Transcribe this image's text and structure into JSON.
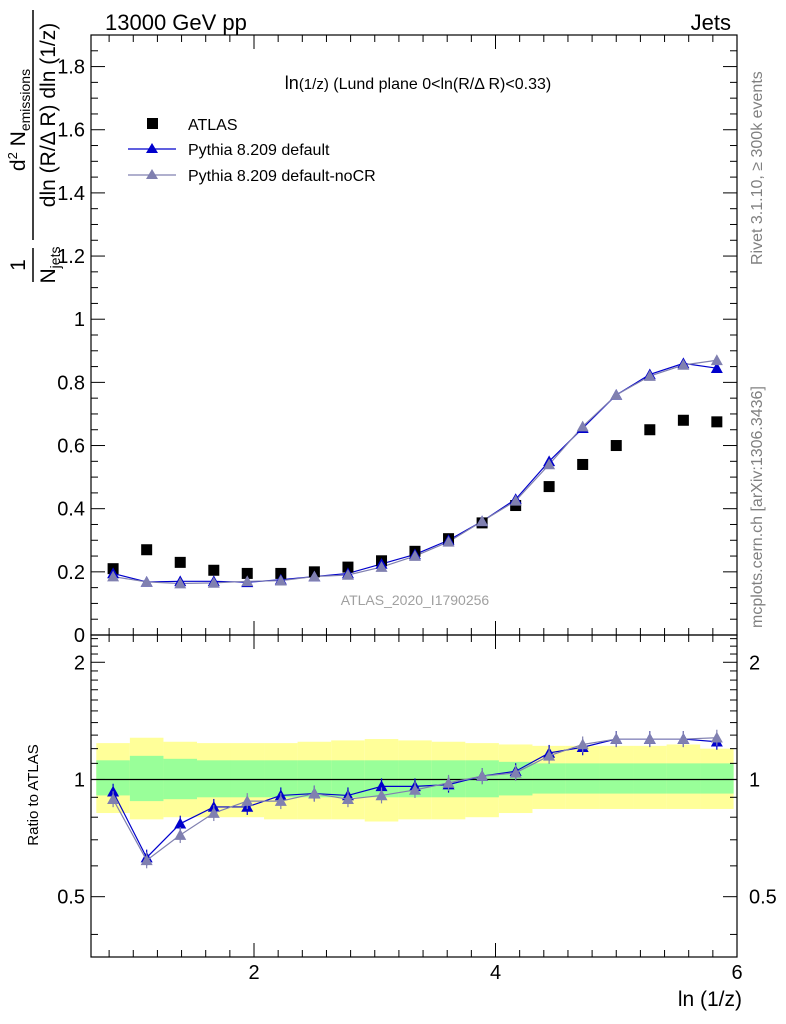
{
  "header": {
    "left": "13000 GeV pp",
    "right": "Jets"
  },
  "side_labels": {
    "rivet": "Rivet 3.1.10, ≥ 300k events",
    "mcplots": "mcplots.cern.ch [arXiv:1306.3436]"
  },
  "main_title": {
    "prefix": "ln",
    "sub": "(1/z)",
    "rest": " (Lund plane 0<ln(R/Δ R)<0.33)"
  },
  "ylabel_main": {
    "num_one": "1",
    "den_N": "N",
    "den_sub": "jets",
    "den_rest": "dln (R/Δ R) dln (1/z)",
    "num_d": "d",
    "num_exp": "2",
    "num_N": " N",
    "num_sub": "emissions"
  },
  "ylabel_ratio": "Ratio to ATLAS",
  "xlabel": "ln (1/z)",
  "watermark": "ATLAS_2020_I1790256",
  "legend": [
    {
      "label": "ATLAS",
      "marker": "square",
      "color": "#000000"
    },
    {
      "label": "Pythia 8.209 default",
      "marker": "triangle",
      "color": "#0000cc"
    },
    {
      "label": "Pythia 8.209 default-noCR",
      "marker": "triangle",
      "color": "#8080b0"
    }
  ],
  "chart_data": [
    {
      "type": "scatter",
      "panel": "main",
      "xlabel": "ln (1/z)",
      "xlim": [
        0.65,
        6.0
      ],
      "ylim": [
        0.0,
        1.9
      ],
      "x_ticks": [
        2,
        4,
        6
      ],
      "y_ticks": [
        0,
        0.2,
        0.4,
        0.6,
        0.8,
        1,
        1.2,
        1.4,
        1.6,
        1.8
      ],
      "x": [
        0.833,
        1.111,
        1.389,
        1.667,
        1.944,
        2.222,
        2.5,
        2.778,
        3.056,
        3.333,
        3.611,
        3.889,
        4.167,
        4.444,
        4.722,
        5.0,
        5.278,
        5.556,
        5.833
      ],
      "series": [
        {
          "name": "ATLAS",
          "color": "#000000",
          "marker": "square",
          "values": [
            0.21,
            0.27,
            0.23,
            0.205,
            0.195,
            0.195,
            0.2,
            0.215,
            0.235,
            0.265,
            0.305,
            0.355,
            0.41,
            0.47,
            0.54,
            0.6,
            0.65,
            0.68,
            0.675
          ]
        },
        {
          "name": "Pythia 8.209 default",
          "color": "#0000cc",
          "marker": "triangle",
          "values": [
            0.195,
            0.168,
            0.17,
            0.17,
            0.167,
            0.175,
            0.185,
            0.195,
            0.225,
            0.255,
            0.3,
            0.36,
            0.43,
            0.55,
            0.655,
            0.76,
            0.825,
            0.86,
            0.845
          ]
        },
        {
          "name": "Pythia 8.209 default-noCR",
          "color": "#8080b0",
          "marker": "triangle",
          "values": [
            0.185,
            0.168,
            0.163,
            0.165,
            0.17,
            0.172,
            0.185,
            0.19,
            0.215,
            0.25,
            0.295,
            0.36,
            0.425,
            0.54,
            0.66,
            0.76,
            0.82,
            0.855,
            0.87
          ]
        }
      ]
    },
    {
      "type": "line",
      "panel": "ratio",
      "ylabel": "Ratio to ATLAS",
      "xlabel": "ln (1/z)",
      "xlim": [
        0.65,
        6.0
      ],
      "ylim": [
        0.35,
        2.35
      ],
      "x_ticks": [
        2,
        4,
        6
      ],
      "y_ticks": [
        0.5,
        1,
        2
      ],
      "reference_line": 1.0,
      "x": [
        0.833,
        1.111,
        1.389,
        1.667,
        1.944,
        2.222,
        2.5,
        2.778,
        3.056,
        3.333,
        3.611,
        3.889,
        4.167,
        4.444,
        4.722,
        5.0,
        5.278,
        5.556,
        5.833
      ],
      "bands": {
        "inner": {
          "color": "#99ff99",
          "lo": [
            0.91,
            0.88,
            0.89,
            0.9,
            0.9,
            0.9,
            0.9,
            0.9,
            0.9,
            0.9,
            0.9,
            0.9,
            0.91,
            0.92,
            0.92,
            0.92,
            0.92,
            0.92,
            0.92
          ],
          "hi": [
            1.12,
            1.15,
            1.13,
            1.12,
            1.12,
            1.12,
            1.12,
            1.12,
            1.12,
            1.12,
            1.12,
            1.12,
            1.11,
            1.1,
            1.1,
            1.1,
            1.1,
            1.1,
            1.1
          ]
        },
        "outer": {
          "color": "#ffff99",
          "lo": [
            0.82,
            0.79,
            0.8,
            0.8,
            0.8,
            0.79,
            0.79,
            0.79,
            0.78,
            0.79,
            0.79,
            0.8,
            0.82,
            0.84,
            0.84,
            0.84,
            0.84,
            0.84,
            0.84
          ],
          "hi": [
            1.24,
            1.28,
            1.25,
            1.24,
            1.24,
            1.24,
            1.25,
            1.26,
            1.27,
            1.26,
            1.25,
            1.24,
            1.23,
            1.22,
            1.22,
            1.22,
            1.22,
            1.23,
            1.2
          ]
        }
      },
      "series": [
        {
          "name": "Pythia 8.209 default",
          "color": "#0000cc",
          "marker": "triangle",
          "values": [
            0.93,
            0.63,
            0.77,
            0.85,
            0.85,
            0.91,
            0.92,
            0.91,
            0.96,
            0.96,
            0.97,
            1.02,
            1.05,
            1.17,
            1.21,
            1.27,
            1.27,
            1.27,
            1.25
          ]
        },
        {
          "name": "Pythia 8.209 default-noCR",
          "color": "#8080b0",
          "marker": "triangle",
          "values": [
            0.89,
            0.62,
            0.72,
            0.82,
            0.88,
            0.88,
            0.92,
            0.89,
            0.91,
            0.94,
            0.98,
            1.02,
            1.04,
            1.15,
            1.23,
            1.27,
            1.27,
            1.27,
            1.28
          ]
        }
      ]
    }
  ]
}
